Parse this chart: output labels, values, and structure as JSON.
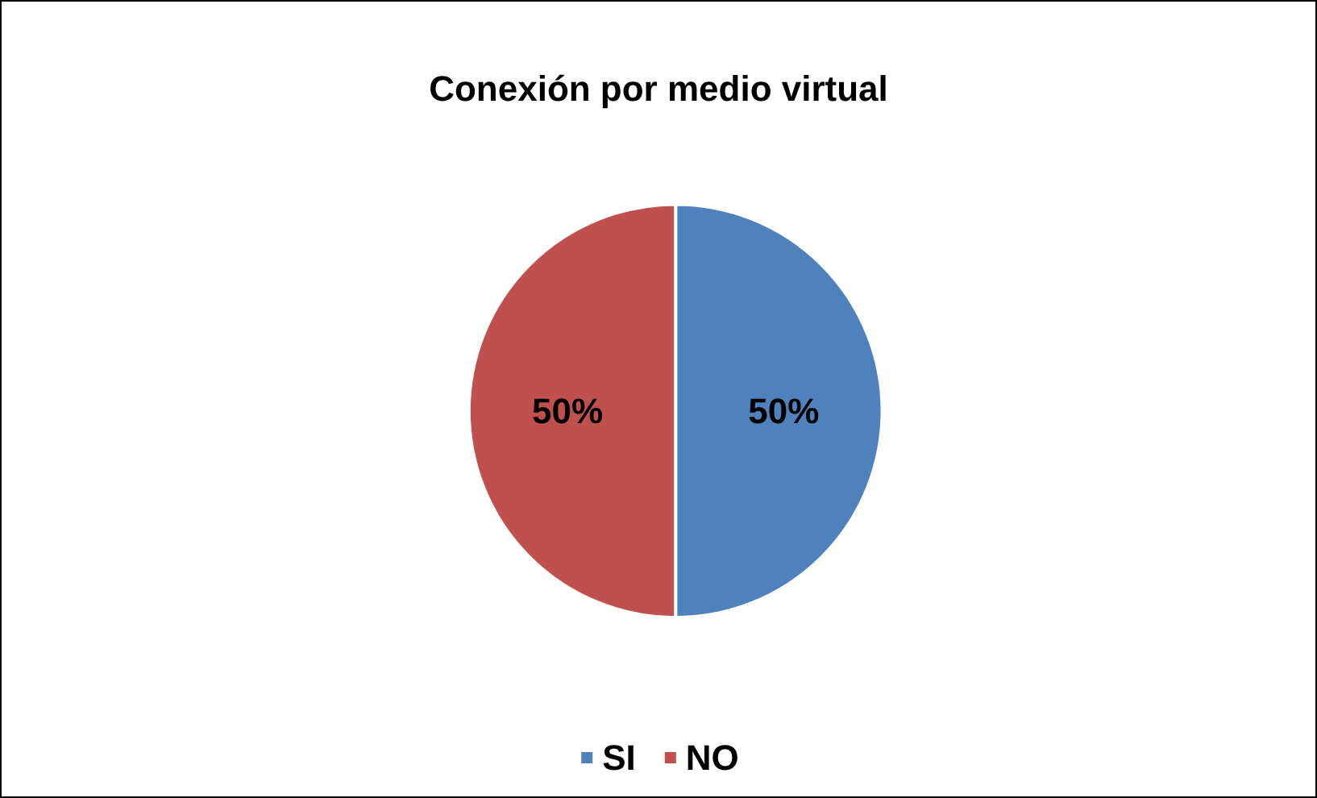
{
  "chart_data": {
    "type": "pie",
    "title": "Conexión por medio virtual",
    "categories": [
      "SI",
      "NO"
    ],
    "values": [
      50,
      50
    ],
    "colors": [
      "#4f81bd",
      "#c0504d"
    ],
    "value_labels": [
      "50%",
      "50%"
    ],
    "legend": "bottom"
  }
}
